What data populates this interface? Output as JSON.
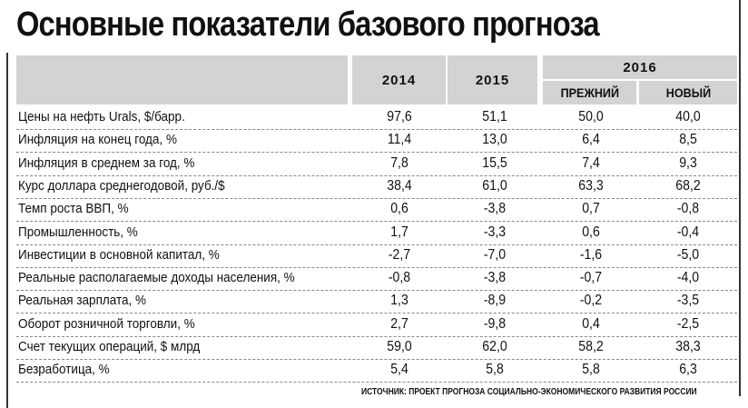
{
  "title": "Основные показатели базового прогноза",
  "chart_data": {
    "type": "table",
    "title": "Основные показатели базового прогноза",
    "columns": {
      "y2014": "2014",
      "y2015": "2015",
      "y2016": "2016",
      "prev": "ПРЕЖНИЙ",
      "new": "НОВЫЙ"
    },
    "rows": [
      {
        "label": "Цены на нефть Urals, $/барр.",
        "values": [
          "97,6",
          "51,1",
          "50,0",
          "40,0"
        ]
      },
      {
        "label": "Инфляция на конец года, %",
        "values": [
          "11,4",
          "13,0",
          "6,4",
          "8,5"
        ]
      },
      {
        "label": "Инфляция в среднем за год, %",
        "values": [
          "7,8",
          "15,5",
          "7,4",
          "9,3"
        ]
      },
      {
        "label": "Курс доллара среднегодовой, руб./$",
        "values": [
          "38,4",
          "61,0",
          "63,3",
          "68,2"
        ]
      },
      {
        "label": "Темп роста ВВП, %",
        "values": [
          "0,6",
          "-3,8",
          "0,7",
          "-0,8"
        ]
      },
      {
        "label": "Промышленность, %",
        "values": [
          "1,7",
          "-3,3",
          "0,6",
          "-0,4"
        ]
      },
      {
        "label": "Инвестиции в основной капитал, %",
        "values": [
          "-2,7",
          "-7,0",
          "-1,6",
          "-5,0"
        ]
      },
      {
        "label": "Реальные располагаемые доходы населения, %",
        "values": [
          "-0,8",
          "-3,8",
          "-0,7",
          "-4,0"
        ]
      },
      {
        "label": "Реальная зарплата, %",
        "values": [
          "1,3",
          "-8,9",
          "-0,2",
          "-3,5"
        ]
      },
      {
        "label": "Оборот розничной торговли, %",
        "values": [
          "2,7",
          "-9,8",
          "0,4",
          "-2,5"
        ]
      },
      {
        "label": "Счет текущих операций, $ млрд",
        "values": [
          "59,0",
          "62,0",
          "58,2",
          "38,3"
        ]
      },
      {
        "label": "Безработица, %",
        "values": [
          "5,4",
          "5,8",
          "5,8",
          "6,3"
        ]
      }
    ],
    "source": "ИСТОЧНИК: ПРОЕКТ ПРОГНОЗА СОЦИАЛЬНО-ЭКОНОМИЧЕСКОГО РАЗВИТИЯ РОССИИ"
  },
  "colors": {
    "header_bg": "#d1d3d5",
    "text": "#111111"
  }
}
